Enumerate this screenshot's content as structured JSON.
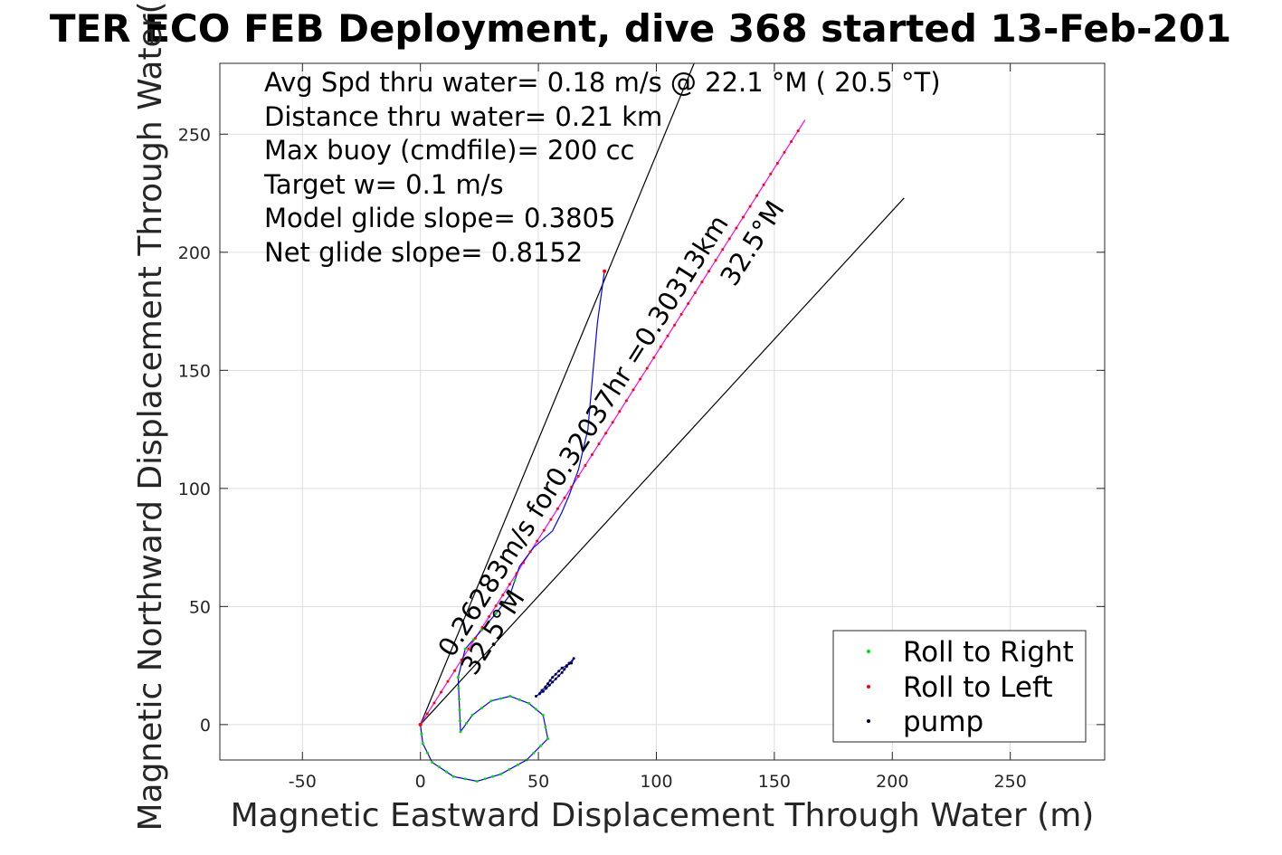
{
  "chart_data": {
    "type": "scatter",
    "title": "TER ECO FEB Deployment, dive 368 started 13-Feb-201",
    "xlabel": "Magnetic Eastward Displacement Through Water (m)",
    "ylabel": "Magnetic Northward Displacement Through Water(",
    "xlim": [
      -85,
      290
    ],
    "ylim": [
      -15,
      280
    ],
    "xticks": [
      -50,
      0,
      50,
      100,
      150,
      200,
      250
    ],
    "yticks": [
      0,
      50,
      100,
      150,
      200,
      250
    ],
    "grid": true,
    "legend_placement": "bottom-right",
    "colors": {
      "roll_right": "#00e000",
      "roll_left": "#ff0000",
      "pump": "#000033",
      "track": "#0000ff",
      "magenta": "#ff00ff",
      "axes": "#262626",
      "grid": "#dddddd"
    },
    "annotations": [
      "Avg Spd thru water=  0.18 m/s @  22.1 °M ( 20.5 °T)",
      "Distance thru water=  0.21 km",
      "Max buoy (cmdfile)= 200 cc",
      "Target w= 0.1 m/s",
      "Model glide slope= 0.3805",
      "Net glide slope= 0.8152"
    ],
    "heading_label_1": "0.26283m/s for0.32037hr =0.30313km",
    "heading_label_2": "32.5°M",
    "heading_label_3": "32.5°M",
    "series": [
      {
        "name": "Roll to Right",
        "color": "#00e000"
      },
      {
        "name": "Roll to Left",
        "color": "#ff0000"
      },
      {
        "name": "pump",
        "color": "#000033"
      }
    ],
    "lines": {
      "cone_left": [
        [
          0,
          0
        ],
        [
          116,
          280
        ]
      ],
      "cone_right": [
        [
          0,
          0
        ],
        [
          205,
          223
        ]
      ],
      "heading": [
        [
          0,
          0
        ],
        [
          163,
          256
        ]
      ],
      "track_loop": [
        [
          0,
          0
        ],
        [
          1,
          -8
        ],
        [
          5,
          -16
        ],
        [
          14,
          -22
        ],
        [
          24,
          -24
        ],
        [
          34,
          -21
        ],
        [
          45,
          -15
        ],
        [
          54,
          -6
        ],
        [
          52,
          4
        ],
        [
          46,
          9
        ],
        [
          38,
          12
        ],
        [
          30,
          10
        ],
        [
          22,
          4
        ],
        [
          17,
          -3
        ],
        [
          16,
          20
        ],
        [
          19,
          32
        ],
        [
          26,
          40
        ],
        [
          32,
          47
        ],
        [
          38,
          55
        ],
        [
          42,
          67
        ],
        [
          48,
          75
        ],
        [
          56,
          82
        ],
        [
          60,
          90
        ],
        [
          63,
          97
        ],
        [
          67,
          108
        ],
        [
          71,
          125
        ],
        [
          73,
          148
        ],
        [
          75,
          170
        ],
        [
          78,
          192
        ]
      ],
      "pump_track": [
        [
          49,
          12
        ],
        [
          52,
          14
        ],
        [
          56,
          18
        ],
        [
          60,
          22
        ],
        [
          63,
          26
        ],
        [
          65,
          28
        ],
        [
          64,
          26
        ],
        [
          60,
          24
        ],
        [
          56,
          20
        ],
        [
          53,
          16
        ],
        [
          50,
          13
        ]
      ]
    }
  }
}
